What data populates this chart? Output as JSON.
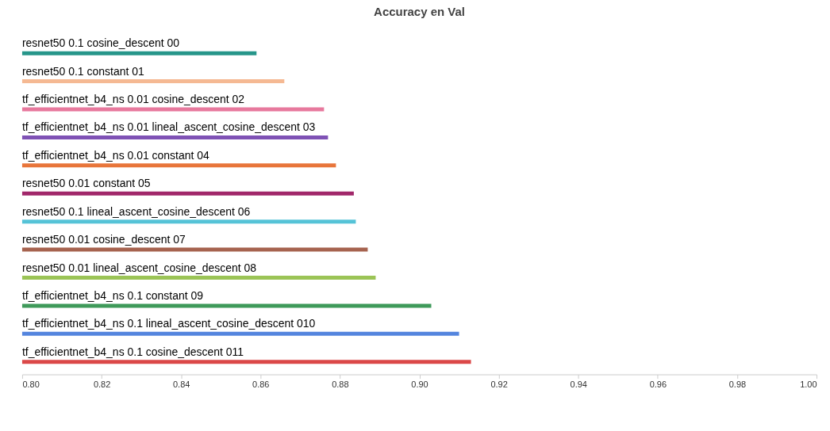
{
  "chart_data": {
    "type": "bar",
    "orientation": "horizontal",
    "title": "Accuracy en Val",
    "categories": [
      "resnet50 0.1 cosine_descent 00",
      "resnet50 0.1 constant 01",
      "tf_efficientnet_b4_ns 0.01 cosine_descent 02",
      "tf_efficientnet_b4_ns 0.01 lineal_ascent_cosine_descent 03",
      "tf_efficientnet_b4_ns 0.01 constant 04",
      "resnet50 0.01 constant 05",
      "resnet50 0.1 lineal_ascent_cosine_descent 06",
      "resnet50 0.01 cosine_descent 07",
      "resnet50 0.01 lineal_ascent_cosine_descent 08",
      "tf_efficientnet_b4_ns 0.1 constant 09",
      "tf_efficientnet_b4_ns 0.1 lineal_ascent_cosine_descent 010",
      "tf_efficientnet_b4_ns 0.1 cosine_descent 011"
    ],
    "values": [
      0.859,
      0.866,
      0.876,
      0.877,
      0.879,
      0.8835,
      0.884,
      0.887,
      0.889,
      0.903,
      0.91,
      0.913
    ],
    "colors": [
      "#26968a",
      "#f5b993",
      "#e7799d",
      "#7f52b5",
      "#e8753a",
      "#a1276a",
      "#55c3d7",
      "#a6634f",
      "#9bc456",
      "#3f9a5a",
      "#5485de",
      "#db4848"
    ],
    "xlim": [
      0.8,
      1.0
    ],
    "xticks": [
      {
        "value": 0.8,
        "label": "0.80"
      },
      0.82,
      0.84,
      0.86,
      0.88,
      {
        "value": 0.9,
        "label": "0.90"
      },
      0.92,
      0.94,
      0.96,
      0.98,
      {
        "value": 1,
        "label": "1.00"
      }
    ]
  }
}
